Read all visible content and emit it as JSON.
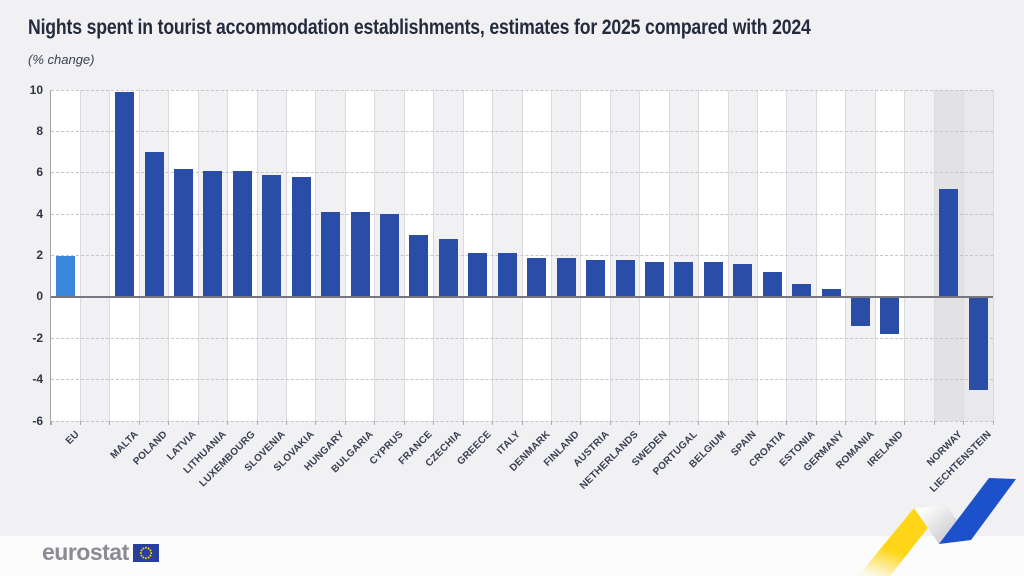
{
  "title": "Nights spent in tourist accommodation establishments, estimates for 2025 compared with 2024",
  "subtitle": "(% change)",
  "footer": {
    "logo_text": "eurostat"
  },
  "colors": {
    "page_bg": "#F1F1F3",
    "footer_bg": "#FCFCFD",
    "bar_default": "#2A4DA8",
    "bar_eu": "#3C86DB",
    "stripe_white": "#FFFFFF",
    "stripe_grey": "#F1F1F3",
    "stripe_efta_dark": "#E2E2E4",
    "stripe_efta_light": "#E9E9EB",
    "grid": "#C6C6CA",
    "zero_line": "#75787E",
    "title_text": "#242B3E",
    "label_text": "#383E52",
    "ribbon_yellow": "#FFD617",
    "ribbon_blue": "#1D51CC",
    "flag_blue": "#27409F",
    "flag_stars": "#FFCC00"
  },
  "chart_data": {
    "type": "bar",
    "title": "Nights spent in tourist accommodation establishments, estimates for 2025 compared with 2024",
    "subtitle": "(% change)",
    "ylabel": "% change",
    "ylim": [
      -6,
      10
    ],
    "yticks": [
      10,
      8,
      6,
      4,
      2,
      0,
      -2,
      -4,
      -6
    ],
    "grid": "horizontal-dashed",
    "legend": "none",
    "layout_note": "EU bar highlighted light blue; empty column after EU and before EFTA countries; Norway and Liechtenstein on darker grey background",
    "series": [
      {
        "label": "EU",
        "value": 2.0,
        "group": "eu"
      },
      {
        "label": "MALTA",
        "value": 9.9,
        "group": "member"
      },
      {
        "label": "POLAND",
        "value": 7.0,
        "group": "member"
      },
      {
        "label": "LATVIA",
        "value": 6.2,
        "group": "member"
      },
      {
        "label": "LITHUANIA",
        "value": 6.1,
        "group": "member"
      },
      {
        "label": "LUXEMBOURG",
        "value": 6.1,
        "group": "member"
      },
      {
        "label": "SLOVENIA",
        "value": 5.9,
        "group": "member"
      },
      {
        "label": "SLOVAKIA",
        "value": 5.8,
        "group": "member"
      },
      {
        "label": "HUNGARY",
        "value": 4.1,
        "group": "member"
      },
      {
        "label": "BULGARIA",
        "value": 4.1,
        "group": "member"
      },
      {
        "label": "CYPRUS",
        "value": 4.0,
        "group": "member"
      },
      {
        "label": "FRANCE",
        "value": 3.0,
        "group": "member"
      },
      {
        "label": "CZECHIA",
        "value": 2.8,
        "group": "member"
      },
      {
        "label": "GREECE",
        "value": 2.1,
        "group": "member"
      },
      {
        "label": "ITALY",
        "value": 2.1,
        "group": "member"
      },
      {
        "label": "DENMARK",
        "value": 1.9,
        "group": "member"
      },
      {
        "label": "FINLAND",
        "value": 1.9,
        "group": "member"
      },
      {
        "label": "AUSTRIA",
        "value": 1.8,
        "group": "member"
      },
      {
        "label": "NETHERLANDS",
        "value": 1.8,
        "group": "member"
      },
      {
        "label": "SWEDEN",
        "value": 1.7,
        "group": "member"
      },
      {
        "label": "PORTUGAL",
        "value": 1.7,
        "group": "member"
      },
      {
        "label": "BELGIUM",
        "value": 1.7,
        "group": "member"
      },
      {
        "label": "SPAIN",
        "value": 1.6,
        "group": "member"
      },
      {
        "label": "CROATIA",
        "value": 1.2,
        "group": "member"
      },
      {
        "label": "ESTONIA",
        "value": 0.6,
        "group": "member"
      },
      {
        "label": "GERMANY",
        "value": 0.4,
        "group": "member"
      },
      {
        "label": "ROMANIA",
        "value": -1.4,
        "group": "member"
      },
      {
        "label": "IRELAND",
        "value": -1.8,
        "group": "member"
      },
      {
        "label": "NORWAY",
        "value": 5.2,
        "group": "efta"
      },
      {
        "label": "LIECHTENSTEIN",
        "value": -4.5,
        "group": "efta"
      }
    ]
  }
}
